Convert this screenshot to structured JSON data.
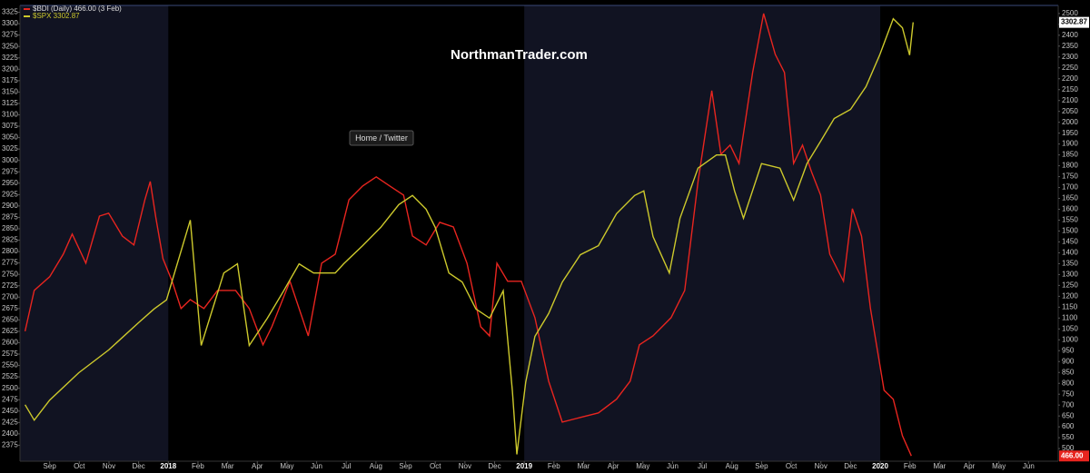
{
  "chart_data": {
    "type": "line",
    "watermark": "NorthmanTrader.com",
    "button": "Home / Twitter",
    "xlim": [
      -1,
      34
    ],
    "xticks": [
      {
        "value": 0,
        "label": "Sep"
      },
      {
        "value": 1,
        "label": "Oct"
      },
      {
        "value": 2,
        "label": "Nov"
      },
      {
        "value": 3,
        "label": "Dec"
      },
      {
        "value": 4,
        "label": "2018"
      },
      {
        "value": 5,
        "label": "Feb"
      },
      {
        "value": 6,
        "label": "Mar"
      },
      {
        "value": 7,
        "label": "Apr"
      },
      {
        "value": 8,
        "label": "May"
      },
      {
        "value": 9,
        "label": "Jun"
      },
      {
        "value": 10,
        "label": "Jul"
      },
      {
        "value": 11,
        "label": "Aug"
      },
      {
        "value": 12,
        "label": "Sep"
      },
      {
        "value": 13,
        "label": "Oct"
      },
      {
        "value": 14,
        "label": "Nov"
      },
      {
        "value": 15,
        "label": "Dec"
      },
      {
        "value": 16,
        "label": "2019"
      },
      {
        "value": 17,
        "label": "Feb"
      },
      {
        "value": 18,
        "label": "Mar"
      },
      {
        "value": 19,
        "label": "Apr"
      },
      {
        "value": 20,
        "label": "May"
      },
      {
        "value": 21,
        "label": "Jun"
      },
      {
        "value": 22,
        "label": "Jul"
      },
      {
        "value": 23,
        "label": "Aug"
      },
      {
        "value": 24,
        "label": "Sep"
      },
      {
        "value": 25,
        "label": "Oct"
      },
      {
        "value": 26,
        "label": "Nov"
      },
      {
        "value": 27,
        "label": "Dec"
      },
      {
        "value": 28,
        "label": "2020"
      },
      {
        "value": 29,
        "label": "Feb"
      },
      {
        "value": 30,
        "label": "Mar"
      },
      {
        "value": 31,
        "label": "Apr"
      },
      {
        "value": 32,
        "label": "May"
      },
      {
        "value": 33,
        "label": "Jun"
      }
    ],
    "ylim": [
      2340,
      3340
    ],
    "yticks": [
      2375,
      2400,
      2425,
      2450,
      2475,
      2500,
      2525,
      2550,
      2575,
      2600,
      2625,
      2650,
      2675,
      2700,
      2725,
      2750,
      2775,
      2800,
      2825,
      2850,
      2875,
      2900,
      2925,
      2950,
      2975,
      3000,
      3025,
      3050,
      3075,
      3100,
      3125,
      3150,
      3175,
      3200,
      3225,
      3250,
      3275,
      3300,
      3325
    ],
    "y2lim": [
      442,
      2537
    ],
    "y2ticks": [
      500,
      550,
      600,
      650,
      700,
      750,
      800,
      850,
      900,
      950,
      1000,
      1050,
      1100,
      1150,
      1200,
      1250,
      1300,
      1350,
      1400,
      1450,
      1500,
      1550,
      1600,
      1650,
      1700,
      1750,
      1800,
      1850,
      1900,
      1950,
      2000,
      2050,
      2100,
      2150,
      2200,
      2250,
      2300,
      2350,
      2400,
      2450,
      2500
    ],
    "grid": false,
    "series": [
      {
        "name": "$BDI (Daily) 466.00 (3 Feb)",
        "color": "#e8251f",
        "axis": "y2",
        "end_label": "466.00",
        "x": [
          -0.83,
          -0.52,
          0,
          0.46,
          0.76,
          1.22,
          1.68,
          1.99,
          2.45,
          2.84,
          3.21,
          3.39,
          3.58,
          3.82,
          4.13,
          4.43,
          4.74,
          5.2,
          5.66,
          6.27,
          6.73,
          7.19,
          7.49,
          8.1,
          8.72,
          9.17,
          9.63,
          10.09,
          10.55,
          11.01,
          11.47,
          11.93,
          12.23,
          12.69,
          13.15,
          13.61,
          14.07,
          14.53,
          14.83,
          15.08,
          15.44,
          15.9,
          16.36,
          16.82,
          17.28,
          17.89,
          18.5,
          19.11,
          19.57,
          19.88,
          20.34,
          20.95,
          21.41,
          21.86,
          22.32,
          22.63,
          22.94,
          23.24,
          23.7,
          24.07,
          24.46,
          24.77,
          25.08,
          25.38,
          25.69,
          25.99,
          26.3,
          26.76,
          27.06,
          27.37,
          27.67,
          28.13,
          28.44,
          28.75,
          29.05
        ],
        "values": [
          1039,
          1227,
          1290,
          1394,
          1486,
          1352,
          1569,
          1582,
          1477,
          1436,
          1644,
          1728,
          1561,
          1373,
          1269,
          1144,
          1185,
          1144,
          1227,
          1227,
          1144,
          977,
          1060,
          1269,
          1018,
          1352,
          1394,
          1644,
          1707,
          1749,
          1707,
          1665,
          1477,
          1436,
          1540,
          1519,
          1352,
          1060,
          1018,
          1352,
          1269,
          1269,
          1102,
          810,
          622,
          643,
          664,
          727,
          810,
          977,
          1018,
          1102,
          1227,
          1728,
          2145,
          1853,
          1895,
          1811,
          2229,
          2500,
          2312,
          2229,
          1811,
          1895,
          1770,
          1665,
          1394,
          1269,
          1603,
          1477,
          1144,
          768,
          727,
          559,
          466
        ]
      },
      {
        "name": "$SPX 3302.87",
        "color": "#cdc92c",
        "axis": "y",
        "end_label": "3302.87",
        "x": [
          -0.83,
          -0.52,
          0,
          0.98,
          1.99,
          3.0,
          3.52,
          3.94,
          4.74,
          5.11,
          5.87,
          6.33,
          6.73,
          7.34,
          7.89,
          8.41,
          8.9,
          9.63,
          9.91,
          10.55,
          11.16,
          11.77,
          12.23,
          12.69,
          13.0,
          13.46,
          13.91,
          14.37,
          14.83,
          15.29,
          15.6,
          15.75,
          16.05,
          16.36,
          16.82,
          17.28,
          17.89,
          18.5,
          19.11,
          19.72,
          20.03,
          20.34,
          20.89,
          21.25,
          21.86,
          22.48,
          22.78,
          23.09,
          23.39,
          24.0,
          24.62,
          25.08,
          25.53,
          25.99,
          26.45,
          27.0,
          27.52,
          27.98,
          28.44,
          28.75,
          28.99,
          29.11
        ],
        "values": [
          2464,
          2430,
          2474,
          2534,
          2584,
          2644,
          2674,
          2694,
          2869,
          2594,
          2753,
          2773,
          2594,
          2654,
          2714,
          2773,
          2753,
          2753,
          2773,
          2813,
          2853,
          2903,
          2923,
          2893,
          2853,
          2753,
          2733,
          2674,
          2654,
          2714,
          2494,
          2355,
          2514,
          2614,
          2664,
          2733,
          2793,
          2813,
          2883,
          2923,
          2933,
          2833,
          2753,
          2873,
          2983,
          3012,
          3012,
          2933,
          2873,
          2993,
          2983,
          2913,
          2993,
          3042,
          3092,
          3112,
          3162,
          3231,
          3311,
          3291,
          3231,
          3302.87
        ]
      }
    ]
  }
}
